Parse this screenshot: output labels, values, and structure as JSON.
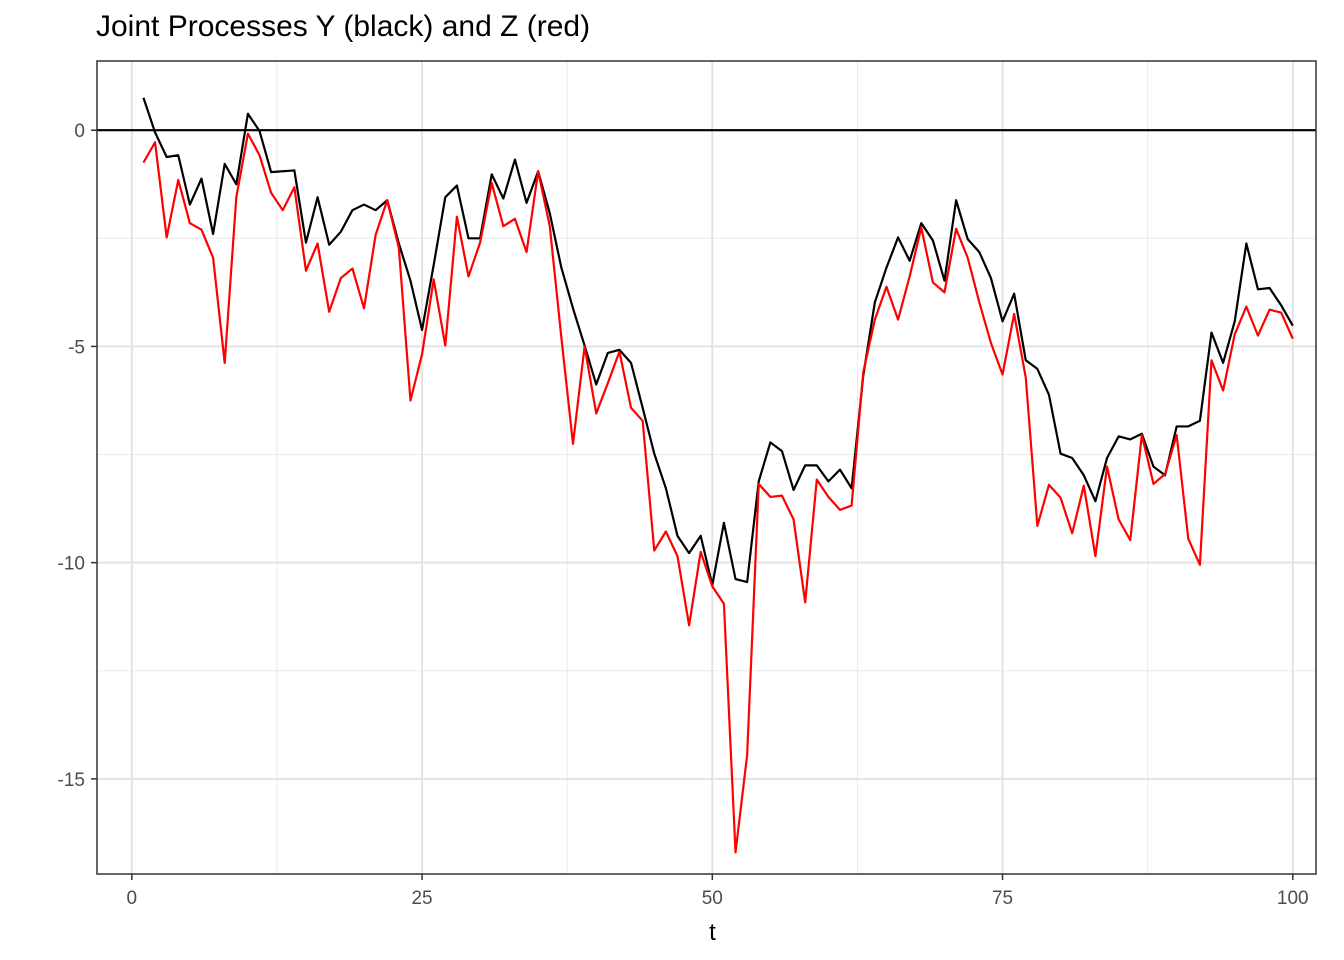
{
  "chart_data": {
    "type": "line",
    "title": "Joint Processes Y (black) and Z (red)",
    "xlabel": "t",
    "ylabel": "",
    "xlim": [
      -3,
      102
    ],
    "ylim": [
      -17.2,
      1.6
    ],
    "x_ticks": [
      0,
      25,
      50,
      75,
      100
    ],
    "x_tick_labels": [
      "0",
      "25",
      "50",
      "75",
      "100"
    ],
    "y_ticks": [
      0,
      -5,
      -10,
      -15
    ],
    "y_tick_labels": [
      "0",
      "-5",
      "-10",
      "-15"
    ],
    "grid": true,
    "reference_line": {
      "y": 0,
      "color": "#000000"
    },
    "series": [
      {
        "color": "#000000",
        "values": [
          0.75,
          -0.05,
          -0.62,
          -0.58,
          -1.72,
          -1.12,
          -2.4,
          -0.78,
          -1.25,
          0.38,
          -0.02,
          -0.97,
          -0.95,
          -0.93,
          -2.6,
          -1.55,
          -2.65,
          -2.35,
          -1.85,
          -1.72,
          -1.85,
          -1.62,
          -2.62,
          -3.48,
          -4.62,
          -3.12,
          -1.55,
          -1.28,
          -2.5,
          -2.5,
          -1.02,
          -1.58,
          -0.68,
          -1.68,
          -0.95,
          -1.92,
          -3.18,
          -4.12,
          -4.98,
          -5.88,
          -5.15,
          -5.08,
          -5.38,
          -6.42,
          -7.48,
          -8.28,
          -9.38,
          -9.78,
          -9.38,
          -10.52,
          -9.08,
          -10.38,
          -10.45,
          -8.12,
          -7.22,
          -7.42,
          -8.32,
          -7.75,
          -7.75,
          -8.12,
          -7.85,
          -8.28,
          -5.68,
          -3.98,
          -3.18,
          -2.48,
          -3.02,
          -2.15,
          -2.55,
          -3.48,
          -1.62,
          -2.52,
          -2.82,
          -3.42,
          -4.42,
          -3.78,
          -5.32,
          -5.52,
          -6.12,
          -7.48,
          -7.58,
          -7.98,
          -8.58,
          -7.58,
          -7.08,
          -7.15,
          -7.02,
          -7.78,
          -7.98,
          -6.85,
          -6.85,
          -6.72,
          -4.68,
          -5.38,
          -4.42,
          -2.62,
          -3.68,
          -3.65,
          -4.05,
          -4.52
        ]
      },
      {
        "color": "#ff0000",
        "values": [
          -0.75,
          -0.28,
          -2.48,
          -1.15,
          -2.15,
          -2.3,
          -2.95,
          -5.38,
          -1.55,
          -0.08,
          -0.58,
          -1.45,
          -1.85,
          -1.32,
          -3.25,
          -2.62,
          -4.2,
          -3.42,
          -3.2,
          -4.12,
          -2.42,
          -1.62,
          -2.72,
          -6.25,
          -5.18,
          -3.45,
          -4.98,
          -2.0,
          -3.38,
          -2.6,
          -1.22,
          -2.22,
          -2.05,
          -2.82,
          -0.95,
          -2.22,
          -4.8,
          -7.25,
          -5.0,
          -6.55,
          -5.85,
          -5.12,
          -6.42,
          -6.72,
          -9.72,
          -9.28,
          -9.85,
          -11.45,
          -9.75,
          -10.55,
          -10.95,
          -16.7,
          -14.45,
          -8.18,
          -8.48,
          -8.45,
          -9.0,
          -10.92,
          -8.08,
          -8.48,
          -8.78,
          -8.68,
          -5.6,
          -4.38,
          -3.62,
          -4.38,
          -3.38,
          -2.25,
          -3.52,
          -3.75,
          -2.28,
          -2.95,
          -3.98,
          -4.92,
          -5.65,
          -4.25,
          -5.72,
          -9.15,
          -8.2,
          -8.5,
          -9.32,
          -8.22,
          -9.85,
          -7.78,
          -9.0,
          -9.48,
          -7.05,
          -8.18,
          -7.95,
          -7.05,
          -9.45,
          -10.05,
          -5.32,
          -6.02,
          -4.72,
          -4.08,
          -4.75,
          -4.15,
          -4.22,
          -4.82
        ]
      }
    ]
  }
}
